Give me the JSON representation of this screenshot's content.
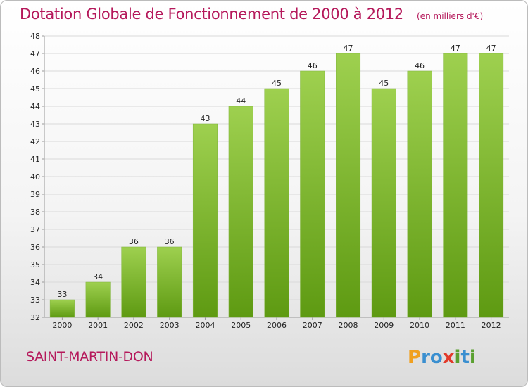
{
  "chart_data": {
    "type": "bar",
    "title": "Dotation Globale de Fonctionnement de 2000 à 2012",
    "subtitle": "(en milliers d'€)",
    "categories": [
      "2000",
      "2001",
      "2002",
      "2003",
      "2004",
      "2005",
      "2006",
      "2007",
      "2008",
      "2009",
      "2010",
      "2011",
      "2012"
    ],
    "values": [
      33,
      34,
      36,
      36,
      43,
      44,
      45,
      46,
      47,
      45,
      46,
      47,
      47
    ],
    "ylim": [
      32,
      48
    ],
    "yticks": [
      32,
      33,
      34,
      35,
      36,
      37,
      38,
      39,
      40,
      41,
      42,
      43,
      44,
      45,
      46,
      47,
      48
    ],
    "grid": true,
    "bar_color_top": "#9ed04f",
    "bar_color_bottom": "#5e9a12"
  },
  "footer": {
    "commune": "SAINT-MARTIN-DON",
    "logo_text": "Proxiti"
  },
  "colors": {
    "title": "#b5195b",
    "grid": "#d9d9d9",
    "axis": "#999999"
  }
}
